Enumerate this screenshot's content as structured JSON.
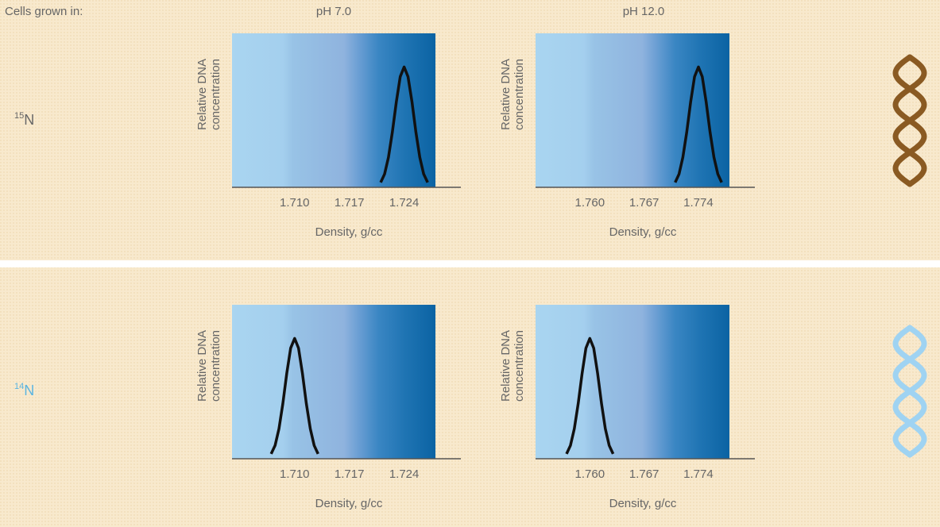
{
  "header": {
    "label": "Cells grown in:",
    "columns": [
      "pH 7.0",
      "pH 12.0"
    ]
  },
  "rows": [
    {
      "isotope": "15",
      "element": "N"
    },
    {
      "isotope": "14",
      "element": "N"
    }
  ],
  "chart_data": [
    {
      "type": "line",
      "x_label": "Density, g/cc",
      "y_label": [
        "Relative DNA",
        "concentration"
      ],
      "xlim": [
        1.702,
        1.728
      ],
      "xticks": [
        {
          "value": 1.71,
          "label": "1.710"
        },
        1.717,
        1.724
      ],
      "ylim": [
        0,
        1.28
      ],
      "color": "#111111",
      "x": [
        1.721,
        1.7215,
        1.722,
        1.7225,
        1.723,
        1.7235,
        1.724,
        1.7245,
        1.725,
        1.7255,
        1.726,
        1.7265,
        1.727
      ],
      "values": [
        0.04,
        0.11,
        0.25,
        0.46,
        0.71,
        0.92,
        1,
        0.92,
        0.71,
        0.46,
        0.25,
        0.11,
        0.04
      ]
    },
    {
      "type": "line",
      "x_label": "Density, g/cc",
      "y_label": [
        "Relative DNA",
        "concentration"
      ],
      "xlim": [
        1.753,
        1.778
      ],
      "xticks": [
        {
          "value": 1.76,
          "label": "1.760"
        },
        1.767,
        1.774
      ],
      "ylim": [
        0,
        1.28
      ],
      "color": "#111111",
      "x": [
        1.771,
        1.7715,
        1.772,
        1.7725,
        1.773,
        1.7735,
        1.774,
        1.7745,
        1.775,
        1.7755,
        1.776,
        1.7765,
        1.777
      ],
      "values": [
        0.04,
        0.11,
        0.25,
        0.46,
        0.71,
        0.92,
        1,
        0.92,
        0.71,
        0.46,
        0.25,
        0.11,
        0.04
      ]
    },
    {
      "type": "line",
      "x_label": "Density, g/cc",
      "y_label": [
        "Relative DNA",
        "concentration"
      ],
      "xlim": [
        1.702,
        1.728
      ],
      "xticks": [
        {
          "value": 1.71,
          "label": "1.710"
        },
        1.717,
        1.724
      ],
      "ylim": [
        0,
        1.28
      ],
      "color": "#111111",
      "x": [
        1.707,
        1.7075,
        1.708,
        1.7085,
        1.709,
        1.7095,
        1.71,
        1.7105,
        1.711,
        1.7115,
        1.712,
        1.7125,
        1.713
      ],
      "values": [
        0.04,
        0.11,
        0.25,
        0.46,
        0.71,
        0.92,
        1,
        0.92,
        0.71,
        0.46,
        0.25,
        0.11,
        0.04
      ]
    },
    {
      "type": "line",
      "x_label": "Density, g/cc",
      "y_label": [
        "Relative DNA",
        "concentration"
      ],
      "xlim": [
        1.753,
        1.778
      ],
      "xticks": [
        {
          "value": 1.76,
          "label": "1.760"
        },
        1.767,
        1.774
      ],
      "ylim": [
        0,
        1.28
      ],
      "color": "#111111",
      "x": [
        1.757,
        1.7575,
        1.758,
        1.7585,
        1.759,
        1.7595,
        1.76,
        1.7605,
        1.761,
        1.7615,
        1.762,
        1.7625,
        1.763
      ],
      "values": [
        0.04,
        0.11,
        0.25,
        0.46,
        0.71,
        0.92,
        1,
        0.92,
        0.71,
        0.46,
        0.25,
        0.11,
        0.04
      ]
    }
  ]
}
